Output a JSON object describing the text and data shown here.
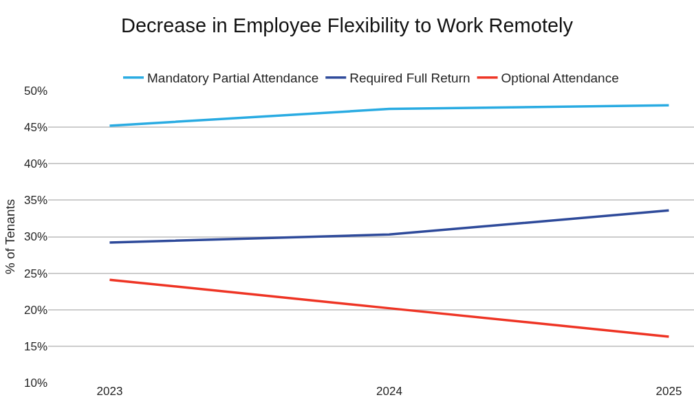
{
  "chart_data": {
    "type": "line",
    "title": "Decrease in Employee Flexibility to Work Remotely",
    "ylabel": "% of Tenants",
    "categories": [
      "2023",
      "2024",
      "2025"
    ],
    "series": [
      {
        "name": "Mandatory Partial Attendance",
        "color": "#29abe2",
        "values": [
          45.2,
          47.5,
          48.0
        ]
      },
      {
        "name": "Required Full Return",
        "color": "#2e4a9a",
        "values": [
          29.2,
          30.3,
          33.6
        ]
      },
      {
        "name": "Optional Attendance",
        "color": "#ee3424",
        "values": [
          24.1,
          20.2,
          16.3
        ]
      }
    ],
    "ylim": [
      10,
      50
    ],
    "yticks": [
      {
        "value": 10,
        "label": "10%"
      },
      {
        "value": 15,
        "label": "15%"
      },
      {
        "value": 20,
        "label": "20%"
      },
      {
        "value": 25,
        "label": "25%"
      },
      {
        "value": 30,
        "label": "30%"
      },
      {
        "value": 35,
        "label": "35%"
      },
      {
        "value": 40,
        "label": "40%"
      },
      {
        "value": 45,
        "label": "45%"
      },
      {
        "value": 50,
        "label": "50%"
      }
    ],
    "grid": "y",
    "legend": "top",
    "marker": "none",
    "line_style": "solid"
  }
}
